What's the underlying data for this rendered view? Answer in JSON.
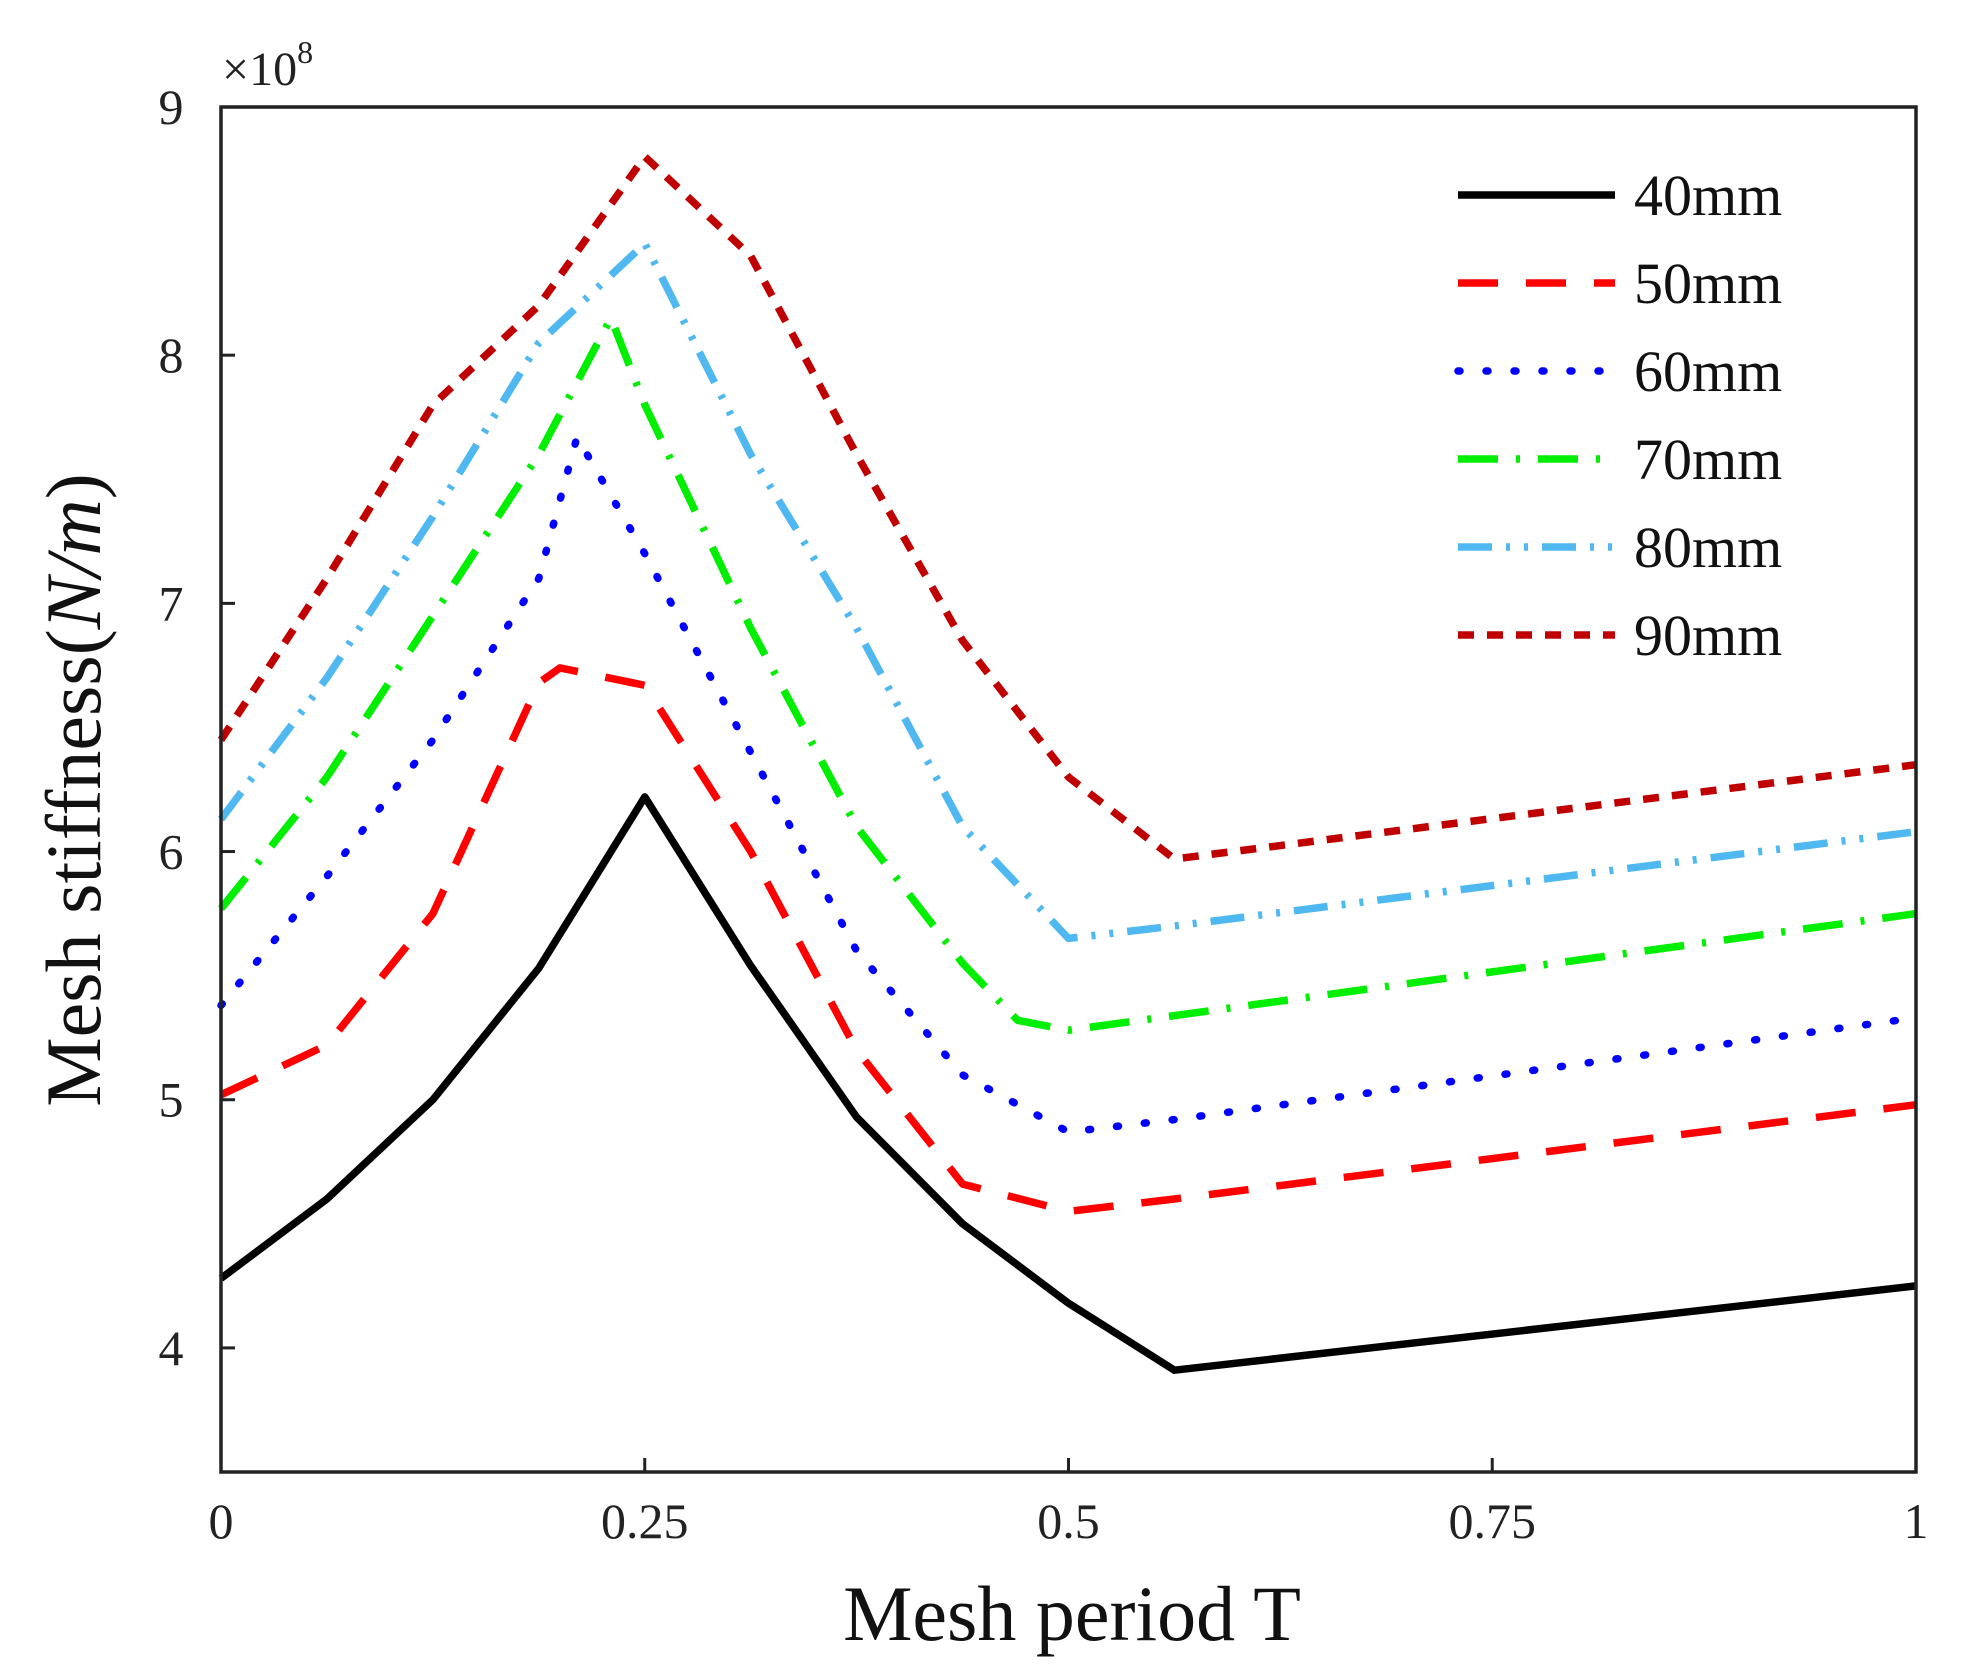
{
  "chart_data": {
    "type": "line",
    "title": "",
    "xlabel": "Mesh period T",
    "ylabel": "Mesh stiffness(N/m)",
    "ylabel_main": "Mesh stiffness(",
    "ylabel_unit": "N/m",
    "ylabel_close": ")",
    "y_multiplier": "×10",
    "y_multiplier_exp": "8",
    "xlim": [
      0,
      1
    ],
    "ylim": [
      3.5,
      9
    ],
    "xticks": [
      0,
      0.25,
      0.5,
      0.75,
      1
    ],
    "xtick_labels": [
      "0",
      "0.25",
      "0.5",
      "0.75",
      "1"
    ],
    "yticks": [
      4,
      5,
      6,
      7,
      8,
      9
    ],
    "ytick_labels": [
      "4",
      "5",
      "6",
      "7",
      "8",
      "9"
    ],
    "grid": false,
    "legend_position": "top-right",
    "series": [
      {
        "name": "40mm",
        "color": "#000000",
        "dash": "solid",
        "x": [
          0,
          0.0625,
          0.125,
          0.1875,
          0.25,
          0.3125,
          0.375,
          0.4375,
          0.5,
          0.5625,
          1
        ],
        "y": [
          4.28,
          4.6,
          5.0,
          5.53,
          6.22,
          5.54,
          4.93,
          4.5,
          4.18,
          3.91,
          4.25
        ]
      },
      {
        "name": "50mm",
        "color": "#ff0000",
        "dash": "dash",
        "x": [
          0,
          0.0625,
          0.125,
          0.1875,
          0.2,
          0.25,
          0.3125,
          0.375,
          0.4375,
          0.5,
          0.5625,
          1
        ],
        "y": [
          5.02,
          5.22,
          5.75,
          6.68,
          6.74,
          6.67,
          6.0,
          5.2,
          4.66,
          4.55,
          4.6,
          4.98
        ]
      },
      {
        "name": "60mm",
        "color": "#0000ff",
        "dash": "dot",
        "x": [
          0,
          0.0625,
          0.125,
          0.1875,
          0.21,
          0.25,
          0.3125,
          0.375,
          0.4375,
          0.5,
          0.5625,
          1
        ],
        "y": [
          5.38,
          5.9,
          6.45,
          7.1,
          7.67,
          7.2,
          6.4,
          5.6,
          5.1,
          4.87,
          4.92,
          5.33
        ]
      },
      {
        "name": "70mm",
        "color": "#00ee00",
        "dash": "dashdot",
        "x": [
          0,
          0.0625,
          0.125,
          0.1875,
          0.23,
          0.25,
          0.3125,
          0.375,
          0.4375,
          0.47,
          0.5,
          1
        ],
        "y": [
          5.77,
          6.3,
          6.95,
          7.6,
          8.15,
          7.8,
          6.9,
          6.1,
          5.55,
          5.32,
          5.28,
          5.75
        ]
      },
      {
        "name": "80mm",
        "color": "#4fb8f0",
        "dash": "dashdotdot",
        "x": [
          0,
          0.0625,
          0.125,
          0.1875,
          0.25,
          0.3125,
          0.375,
          0.4375,
          0.5,
          0.5625,
          1
        ],
        "y": [
          6.13,
          6.7,
          7.35,
          8.05,
          8.45,
          7.6,
          6.9,
          6.1,
          5.65,
          5.7,
          6.08
        ]
      },
      {
        "name": "90mm",
        "color": "#c00000",
        "dash": "shortdash",
        "x": [
          0,
          0.0625,
          0.125,
          0.1875,
          0.25,
          0.3125,
          0.375,
          0.4375,
          0.5,
          0.5625,
          1
        ],
        "y": [
          6.45,
          7.1,
          7.8,
          8.2,
          8.8,
          8.4,
          7.6,
          6.85,
          6.3,
          5.97,
          6.35
        ]
      }
    ]
  }
}
